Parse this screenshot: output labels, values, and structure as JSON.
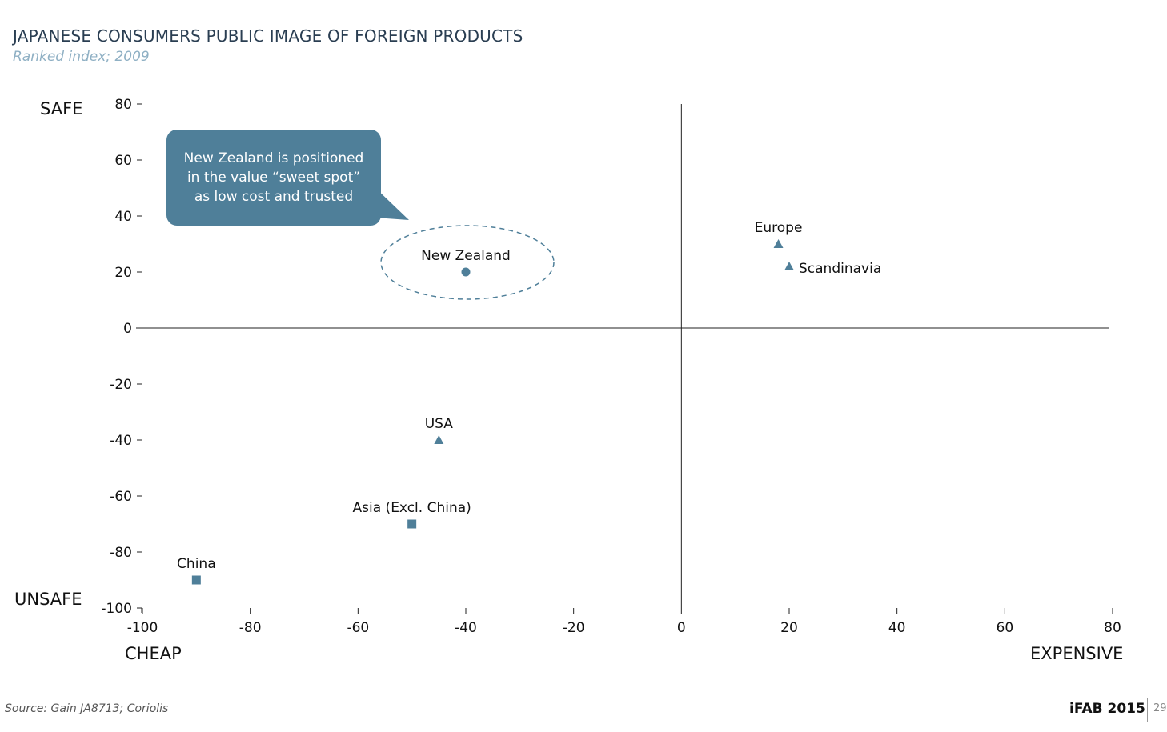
{
  "chart_data": {
    "type": "scatter",
    "title": "JAPANESE CONSUMERS PUBLIC IMAGE OF FOREIGN PRODUCTS",
    "subtitle": "Ranked index; 2009",
    "xlim": [
      -100,
      80
    ],
    "ylim": [
      -100,
      80
    ],
    "x_ticks": [
      -100,
      -80,
      -60,
      -40,
      -20,
      0,
      20,
      40,
      60,
      80
    ],
    "y_ticks": [
      80,
      60,
      40,
      20,
      0,
      -20,
      -40,
      -60,
      -80,
      -100
    ],
    "x_axis_end_labels": {
      "low": "CHEAP",
      "high": "EXPENSIVE"
    },
    "y_axis_end_labels": {
      "high": "SAFE",
      "low": "UNSAFE"
    },
    "grid": false,
    "marker_color": "#4f7f99",
    "points": [
      {
        "label": "New Zealand",
        "x": -40,
        "y": 20,
        "marker": "circle",
        "label_position": "above",
        "highlighted": true
      },
      {
        "label": "Europe",
        "x": 18,
        "y": 30,
        "marker": "triangle",
        "label_position": "above"
      },
      {
        "label": "Scandinavia",
        "x": 20,
        "y": 22,
        "marker": "triangle",
        "label_position": "right"
      },
      {
        "label": "USA",
        "x": -45,
        "y": -40,
        "marker": "triangle",
        "label_position": "above"
      },
      {
        "label": "Asia (Excl. China)",
        "x": -50,
        "y": -70,
        "marker": "square",
        "label_position": "above"
      },
      {
        "label": "China",
        "x": -90,
        "y": -90,
        "marker": "square",
        "label_position": "above"
      }
    ],
    "annotation": {
      "lines": [
        "New Zealand is positioned",
        "in the value “sweet spot”",
        "as low cost and trusted"
      ],
      "color": "#4f7f99"
    }
  },
  "footer": {
    "source": "Source: Gain JA8713; Coriolis",
    "brand": "iFAB 2015",
    "page": "29"
  }
}
